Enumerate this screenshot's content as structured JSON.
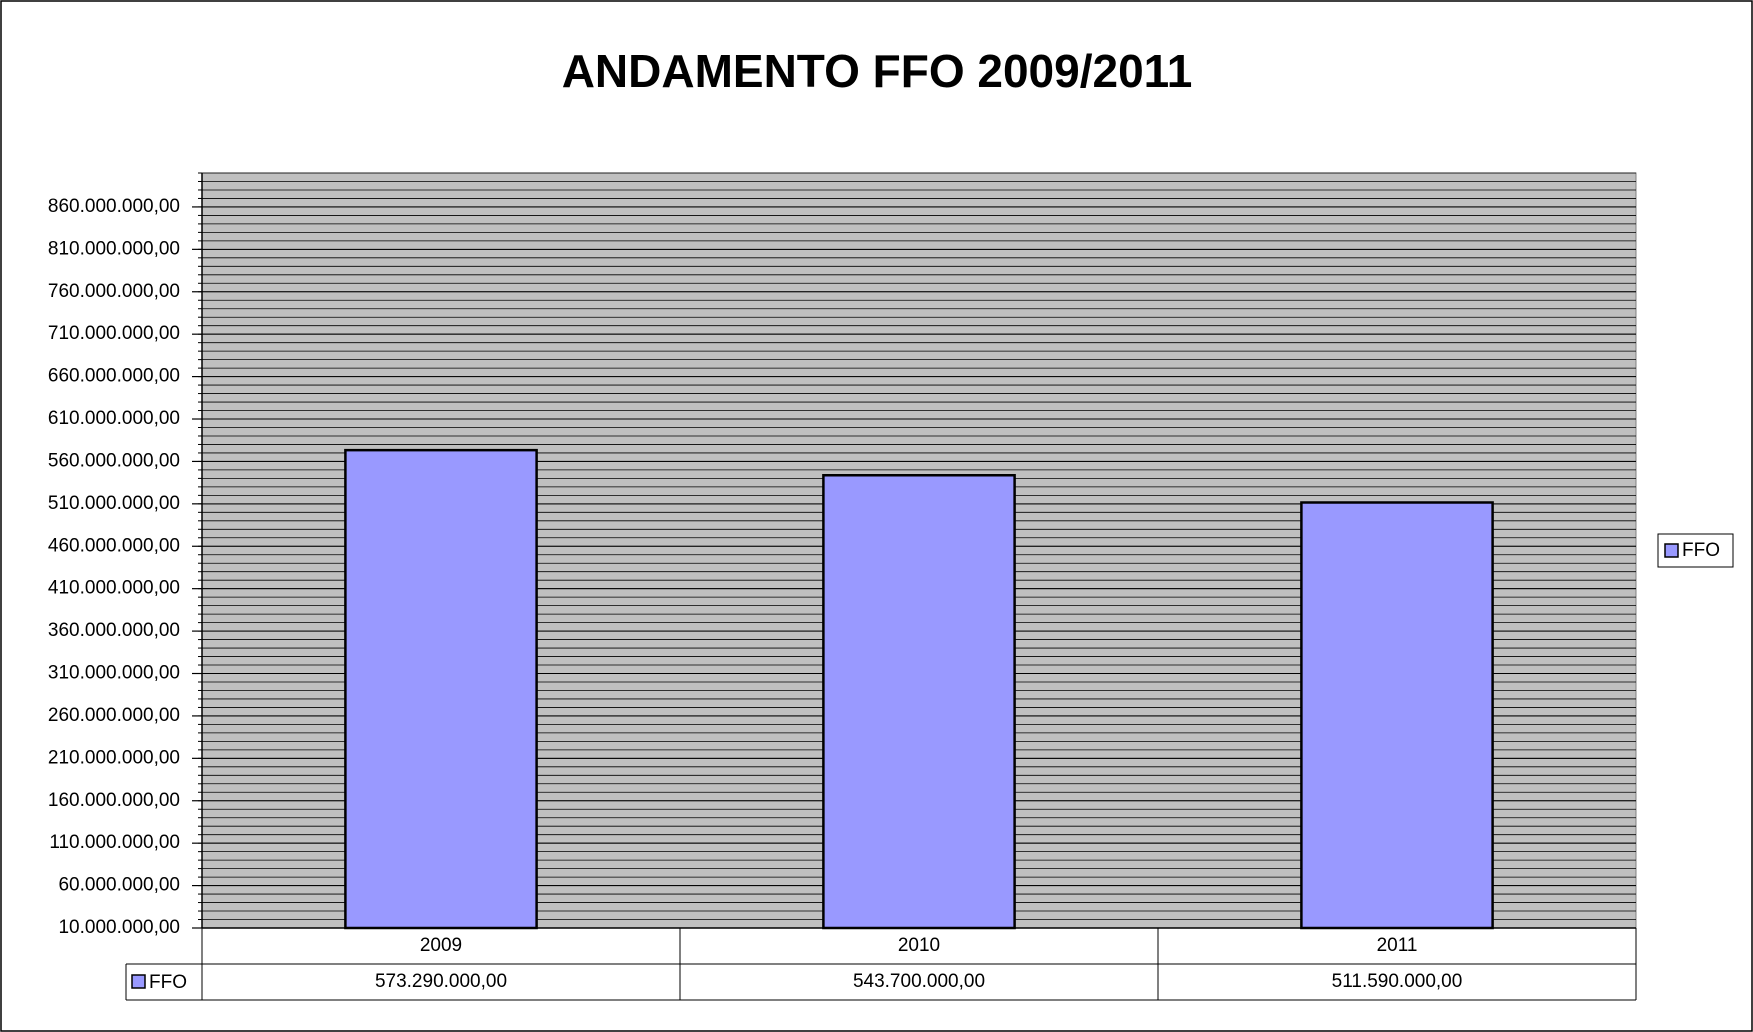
{
  "chart_data": {
    "type": "bar",
    "title": "ANDAMENTO FFO 2009/2011",
    "categories": [
      "2009",
      "2010",
      "2011"
    ],
    "series": [
      {
        "name": "FFO",
        "color": "#9999ff",
        "values": [
          573290000,
          543700000,
          511590000
        ],
        "value_labels": [
          "573.290.000,00",
          "543.700.000,00",
          "511.590.000,00"
        ]
      }
    ],
    "ylim": [
      10000000,
      900000000
    ],
    "yticks": [
      {
        "value": 10000000,
        "label": "10.000.000,00"
      },
      {
        "value": 60000000,
        "label": "60.000.000,00"
      },
      {
        "value": 110000000,
        "label": "110.000.000,00"
      },
      {
        "value": 160000000,
        "label": "160.000.000,00"
      },
      {
        "value": 210000000,
        "label": "210.000.000,00"
      },
      {
        "value": 260000000,
        "label": "260.000.000,00"
      },
      {
        "value": 310000000,
        "label": "310.000.000,00"
      },
      {
        "value": 360000000,
        "label": "360.000.000,00"
      },
      {
        "value": 410000000,
        "label": "410.000.000,00"
      },
      {
        "value": 460000000,
        "label": "460.000.000,00"
      },
      {
        "value": 510000000,
        "label": "510.000.000,00"
      },
      {
        "value": 560000000,
        "label": "560.000.000,00"
      },
      {
        "value": 610000000,
        "label": "610.000.000,00"
      },
      {
        "value": 660000000,
        "label": "660.000.000,00"
      },
      {
        "value": 710000000,
        "label": "710.000.000,00"
      },
      {
        "value": 760000000,
        "label": "760.000.000,00"
      },
      {
        "value": 810000000,
        "label": "810.000.000,00"
      },
      {
        "value": 860000000,
        "label": "860.000.000,00"
      }
    ],
    "grid": true,
    "legend": "right"
  }
}
